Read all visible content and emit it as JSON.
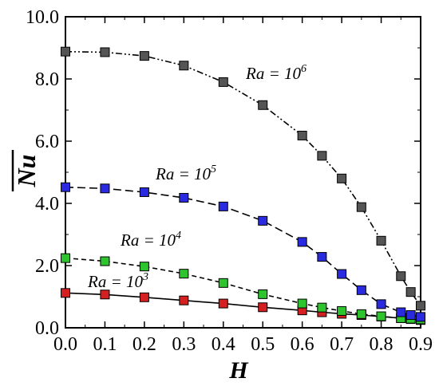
{
  "chart_data": {
    "type": "line",
    "title": "",
    "xlabel": "H",
    "ylabel": "Nu",
    "xlim": [
      0.0,
      0.9
    ],
    "ylim": [
      0.0,
      10.0
    ],
    "x_ticks": [
      "0.0",
      "0.1",
      "0.2",
      "0.3",
      "0.4",
      "0.5",
      "0.6",
      "0.7",
      "0.8",
      "0.9"
    ],
    "y_ticks": [
      "0.0",
      "2.0",
      "4.0",
      "6.0",
      "8.0",
      "10.0"
    ],
    "grid": false,
    "legend": "none",
    "series": [
      {
        "annotation_base": "Ra = 10",
        "annotation_exp": "3",
        "color": "#d42020",
        "line_style": "solid",
        "x": [
          0.0,
          0.1,
          0.2,
          0.3,
          0.4,
          0.5,
          0.6,
          0.65,
          0.7,
          0.75,
          0.8,
          0.85,
          0.875,
          0.9
        ],
        "y": [
          1.12,
          1.07,
          0.98,
          0.88,
          0.78,
          0.66,
          0.56,
          0.5,
          0.45,
          0.41,
          0.36,
          0.31,
          0.28,
          0.25
        ]
      },
      {
        "annotation_base": "Ra = 10",
        "annotation_exp": "4",
        "color": "#2ec42e",
        "line_style": "dashed",
        "x": [
          0.0,
          0.1,
          0.2,
          0.3,
          0.4,
          0.5,
          0.6,
          0.65,
          0.7,
          0.75,
          0.8,
          0.85,
          0.875,
          0.9
        ],
        "y": [
          2.24,
          2.14,
          1.97,
          1.74,
          1.44,
          1.08,
          0.78,
          0.65,
          0.54,
          0.44,
          0.37,
          0.31,
          0.29,
          0.27
        ]
      },
      {
        "annotation_base": "Ra = 10",
        "annotation_exp": "5",
        "color": "#2a2ae0",
        "line_style": "long-dash",
        "x": [
          0.0,
          0.1,
          0.2,
          0.3,
          0.4,
          0.5,
          0.6,
          0.65,
          0.7,
          0.75,
          0.8,
          0.85,
          0.875,
          0.9
        ],
        "y": [
          4.52,
          4.48,
          4.36,
          4.18,
          3.9,
          3.44,
          2.76,
          2.28,
          1.73,
          1.21,
          0.76,
          0.5,
          0.41,
          0.35
        ]
      },
      {
        "annotation_base": "Ra = 10",
        "annotation_exp": "6",
        "color": "#555555",
        "line_style": "dash-dot-dot",
        "x": [
          0.0,
          0.1,
          0.2,
          0.3,
          0.4,
          0.5,
          0.6,
          0.65,
          0.7,
          0.75,
          0.8,
          0.85,
          0.875,
          0.9
        ],
        "y": [
          8.88,
          8.86,
          8.74,
          8.43,
          7.9,
          7.16,
          6.18,
          5.53,
          4.8,
          3.88,
          2.8,
          1.66,
          1.15,
          0.71
        ]
      }
    ]
  }
}
